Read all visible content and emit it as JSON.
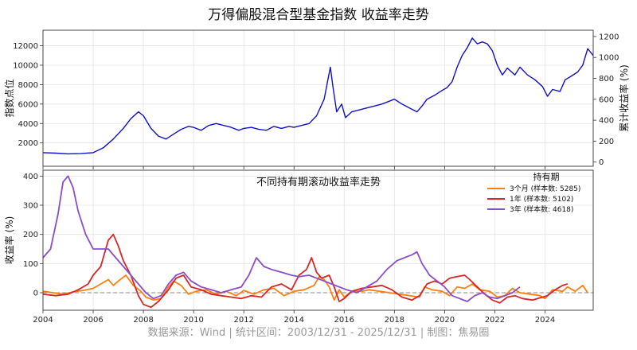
{
  "title": "万得偏股混合型基金指数 收益率走势",
  "source": "数据来源：Wind | 统计区间：2003/12/31 - 2025/12/31 | 制图：焦易圈",
  "chart_data": [
    {
      "type": "line",
      "title": "",
      "ylabel": "指数点位",
      "y2label": "累计收益率 (%)",
      "xlim": [
        2004.0,
        2025.92
      ],
      "ylim": [
        -400,
        13600
      ],
      "y2lim": [
        -40,
        1260
      ],
      "yticks": [
        2000,
        4000,
        6000,
        8000,
        10000,
        12000
      ],
      "y2ticks": [
        0,
        200,
        400,
        600,
        800,
        1000,
        1200
      ],
      "xticks": [
        2004,
        2006,
        2008,
        2010,
        2012,
        2014,
        2016,
        2018,
        2020,
        2022,
        2024
      ],
      "grid": true,
      "color": "#1010c8",
      "series": [
        {
          "x": [
            2004.0,
            2004.5,
            2005.0,
            2005.5,
            2006.0,
            2006.4,
            2006.8,
            2007.2,
            2007.5,
            2007.8,
            2008.0,
            2008.3,
            2008.6,
            2008.9,
            2009.2,
            2009.5,
            2009.8,
            2010.0,
            2010.3,
            2010.6,
            2010.9,
            2011.2,
            2011.5,
            2011.8,
            2012.0,
            2012.3,
            2012.6,
            2012.9,
            2013.2,
            2013.5,
            2013.8,
            2014.0,
            2014.3,
            2014.6,
            2014.9,
            2015.2,
            2015.35,
            2015.45,
            2015.55,
            2015.7,
            2015.9,
            2016.05,
            2016.3,
            2016.6,
            2016.9,
            2017.2,
            2017.5,
            2017.8,
            2018.0,
            2018.3,
            2018.6,
            2018.9,
            2019.1,
            2019.3,
            2019.6,
            2019.9,
            2020.1,
            2020.3,
            2020.5,
            2020.7,
            2020.9,
            2021.1,
            2021.3,
            2021.5,
            2021.7,
            2021.9,
            2022.1,
            2022.3,
            2022.5,
            2022.8,
            2023.0,
            2023.3,
            2023.6,
            2023.9,
            2024.1,
            2024.3,
            2024.6,
            2024.8,
            2025.0,
            2025.3,
            2025.5,
            2025.7,
            2025.92
          ],
          "y": [
            1000,
            950,
            880,
            900,
            1000,
            1500,
            2400,
            3500,
            4500,
            5200,
            4800,
            3500,
            2700,
            2400,
            2900,
            3400,
            3700,
            3600,
            3300,
            3800,
            4000,
            3800,
            3600,
            3300,
            3500,
            3600,
            3400,
            3300,
            3700,
            3500,
            3700,
            3600,
            3800,
            4000,
            4800,
            6500,
            8500,
            9800,
            7800,
            5200,
            6000,
            4600,
            5200,
            5400,
            5600,
            5800,
            6000,
            6300,
            6500,
            6000,
            5600,
            5200,
            5800,
            6500,
            6900,
            7400,
            7700,
            8300,
            9800,
            11000,
            11800,
            12800,
            12200,
            12400,
            12200,
            11500,
            10000,
            9000,
            9700,
            9000,
            9800,
            9000,
            8500,
            7800,
            6800,
            7500,
            7300,
            8500,
            8800,
            9300,
            10000,
            11700,
            11000
          ]
        }
      ]
    },
    {
      "type": "line",
      "title": "不同持有期滚动收益率走势",
      "ylabel": "收益率 (%)",
      "xlim": [
        2004.0,
        2025.92
      ],
      "ylim": [
        -60,
        420
      ],
      "yticks": [
        0,
        100,
        200,
        300,
        400
      ],
      "xticks": [
        2004,
        2006,
        2008,
        2010,
        2012,
        2014,
        2016,
        2018,
        2020,
        2022,
        2024
      ],
      "grid": true,
      "legend_title": "持有期",
      "legend_position": "top-right",
      "series": [
        {
          "name": "3个月 (样本数: 5285)",
          "color": "#ff7f0e",
          "x": [
            2004.0,
            2004.4,
            2004.8,
            2005.2,
            2005.6,
            2006.0,
            2006.3,
            2006.6,
            2006.8,
            2007.0,
            2007.3,
            2007.6,
            2007.9,
            2008.1,
            2008.4,
            2008.7,
            2009.0,
            2009.2,
            2009.5,
            2009.8,
            2010.1,
            2010.5,
            2010.9,
            2011.3,
            2011.7,
            2012.0,
            2012.4,
            2012.8,
            2013.2,
            2013.6,
            2014.0,
            2014.4,
            2014.8,
            2015.0,
            2015.2,
            2015.4,
            2015.6,
            2015.8,
            2016.0,
            2016.3,
            2016.7,
            2017.0,
            2017.4,
            2017.8,
            2018.2,
            2018.6,
            2019.0,
            2019.2,
            2019.5,
            2019.9,
            2020.2,
            2020.5,
            2020.8,
            2021.1,
            2021.4,
            2021.8,
            2022.1,
            2022.4,
            2022.7,
            2023.0,
            2023.4,
            2023.8,
            2024.0,
            2024.3,
            2024.7,
            2024.9,
            2025.2,
            2025.5,
            2025.7
          ],
          "y": [
            5,
            0,
            -5,
            3,
            8,
            15,
            30,
            45,
            25,
            40,
            60,
            25,
            5,
            -15,
            -25,
            -20,
            20,
            40,
            25,
            -5,
            5,
            10,
            -5,
            5,
            -10,
            8,
            -5,
            10,
            15,
            -10,
            5,
            10,
            25,
            55,
            45,
            20,
            -25,
            10,
            -15,
            5,
            5,
            10,
            5,
            0,
            -5,
            -10,
            -15,
            20,
            10,
            5,
            -10,
            20,
            15,
            30,
            10,
            5,
            -15,
            -10,
            15,
            0,
            -5,
            -10,
            -20,
            10,
            5,
            20,
            5,
            25,
            0
          ]
        },
        {
          "name": "1年 (样本数: 5102)",
          "color": "#d62728",
          "x": [
            2004.0,
            2004.5,
            2005.0,
            2005.4,
            2005.8,
            2006.0,
            2006.3,
            2006.6,
            2006.8,
            2007.0,
            2007.2,
            2007.5,
            2007.8,
            2008.0,
            2008.3,
            2008.6,
            2009.0,
            2009.3,
            2009.6,
            2009.9,
            2010.3,
            2010.7,
            2011.1,
            2011.5,
            2011.9,
            2012.3,
            2012.7,
            2013.1,
            2013.5,
            2013.9,
            2014.2,
            2014.5,
            2014.7,
            2014.9,
            2015.1,
            2015.4,
            2015.6,
            2015.8,
            2016.0,
            2016.3,
            2016.7,
            2017.1,
            2017.5,
            2017.9,
            2018.3,
            2018.7,
            2019.0,
            2019.3,
            2019.6,
            2019.9,
            2020.2,
            2020.5,
            2020.8,
            2021.0,
            2021.3,
            2021.6,
            2021.9,
            2022.2,
            2022.5,
            2022.8,
            2023.1,
            2023.5,
            2023.9,
            2024.1,
            2024.4,
            2024.7,
            2024.9
          ],
          "y": [
            -5,
            -10,
            -5,
            10,
            30,
            60,
            90,
            180,
            200,
            160,
            110,
            60,
            -10,
            -40,
            -50,
            -30,
            10,
            50,
            60,
            20,
            10,
            -5,
            -10,
            -15,
            -20,
            -10,
            -15,
            20,
            30,
            10,
            60,
            80,
            120,
            70,
            50,
            60,
            20,
            -30,
            -20,
            5,
            15,
            20,
            25,
            10,
            -15,
            -25,
            -10,
            30,
            40,
            30,
            50,
            55,
            60,
            45,
            20,
            -5,
            -25,
            -35,
            -15,
            -10,
            -20,
            -25,
            -15,
            -10,
            10,
            25,
            30
          ]
        },
        {
          "name": "3年 (样本数: 4618)",
          "color": "#8b4ec8",
          "x": [
            2004.0,
            2004.3,
            2004.6,
            2004.8,
            2005.0,
            2005.2,
            2005.4,
            2005.7,
            2006.0,
            2006.3,
            2006.6,
            2006.9,
            2007.2,
            2007.5,
            2007.8,
            2008.1,
            2008.4,
            2008.7,
            2009.0,
            2009.3,
            2009.6,
            2009.9,
            2010.3,
            2010.7,
            2011.1,
            2011.5,
            2011.9,
            2012.2,
            2012.5,
            2012.8,
            2013.1,
            2013.5,
            2013.9,
            2014.2,
            2014.6,
            2014.9,
            2015.2,
            2015.5,
            2015.8,
            2016.1,
            2016.5,
            2016.9,
            2017.3,
            2017.7,
            2018.1,
            2018.4,
            2018.7,
            2018.9,
            2019.1,
            2019.4,
            2019.7,
            2020.0,
            2020.3,
            2020.6,
            2020.9,
            2021.2,
            2021.5,
            2021.8,
            2022.1,
            2022.4,
            2022.7,
            2023.0
          ],
          "y": [
            120,
            150,
            270,
            380,
            400,
            360,
            280,
            200,
            150,
            150,
            150,
            120,
            90,
            60,
            30,
            0,
            -20,
            -10,
            30,
            60,
            70,
            40,
            20,
            10,
            0,
            10,
            20,
            60,
            120,
            90,
            80,
            70,
            60,
            55,
            60,
            50,
            40,
            30,
            20,
            10,
            0,
            20,
            40,
            80,
            110,
            120,
            130,
            140,
            100,
            60,
            40,
            20,
            -10,
            -20,
            -30,
            -10,
            0,
            -15,
            -20,
            -10,
            0,
            20
          ]
        }
      ]
    }
  ]
}
